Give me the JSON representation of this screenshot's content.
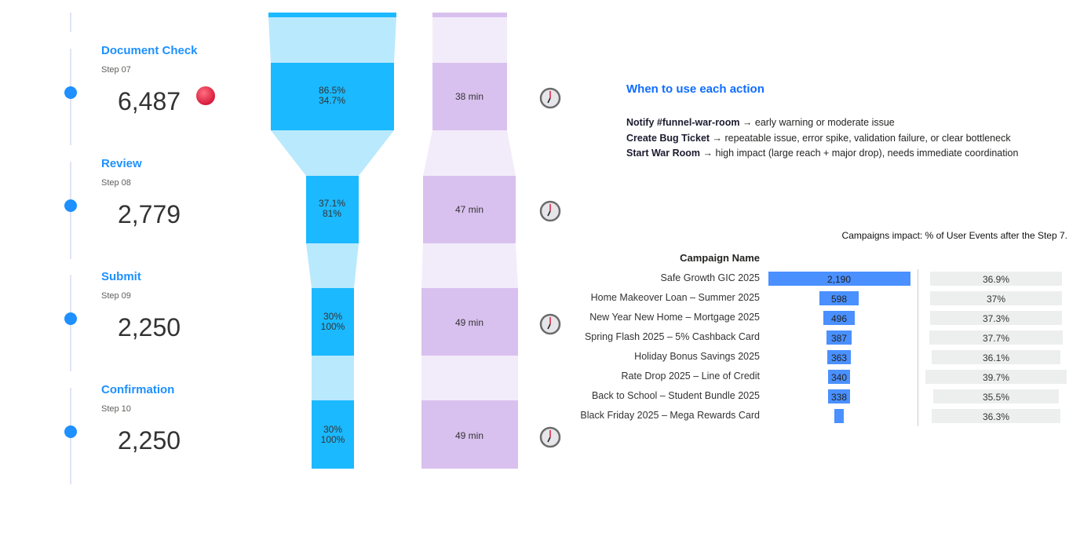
{
  "steps": [
    {
      "title": "Document Check",
      "step": "Step 07",
      "value": "6,487",
      "alert": true,
      "conv": "86.5%",
      "share": "34.7%",
      "time": "38 min"
    },
    {
      "title": "Review",
      "step": "Step 08",
      "value": "2,779",
      "alert": false,
      "conv": "37.1%",
      "share": "81%",
      "time": "47 min"
    },
    {
      "title": "Submit",
      "step": "Step 09",
      "value": "2,250",
      "alert": false,
      "conv": "30%",
      "share": "100%",
      "time": "49 min"
    },
    {
      "title": "Confirmation",
      "step": "Step 10",
      "value": "2,250",
      "alert": false,
      "conv": "30%",
      "share": "100%",
      "time": "49 min"
    }
  ],
  "colors": {
    "accent": "#1e90ff",
    "funnel_dark": "#1bb9ff",
    "funnel_light": "#b9e9fd",
    "time_dark": "#d9c1ef",
    "time_light": "#f2ecfa",
    "bar": "#4a90ff",
    "bar_gray": "#edefee",
    "alert": "#d81b3c"
  },
  "icons": {
    "alert": "red-circle-icon",
    "time": "clock-icon"
  },
  "help": {
    "title": "When to use each action",
    "items": [
      {
        "action": "Notify #funnel-war-room",
        "desc": " → early warning or moderate issue"
      },
      {
        "action": "Create Bug Ticket",
        "desc": " → repeatable issue, error spike, validation failure, or clear bottleneck"
      },
      {
        "action": "Start War Room",
        "desc": " → high impact (large reach + major drop), needs immediate coordination"
      }
    ]
  },
  "campaigns": {
    "caption": "Campaigns impact: % of User Events after the Step 7.",
    "header": "Campaign Name",
    "rows": [
      {
        "name": "Safe Growth GIC 2025",
        "count": 2190,
        "label": "2,190",
        "pct": 36.9,
        "pct_label": "36.9%"
      },
      {
        "name": "Home Makeover Loan – Summer 2025",
        "count": 598,
        "label": "598",
        "pct": 37,
        "pct_label": "37%"
      },
      {
        "name": "New Year New Home – Mortgage 2025",
        "count": 496,
        "label": "496",
        "pct": 37.3,
        "pct_label": "37.3%"
      },
      {
        "name": "Spring Flash 2025 – 5% Cashback Card",
        "count": 387,
        "label": "387",
        "pct": 37.7,
        "pct_label": "37.7%"
      },
      {
        "name": "Holiday Bonus Savings 2025",
        "count": 363,
        "label": "363",
        "pct": 36.1,
        "pct_label": "36.1%"
      },
      {
        "name": "Rate Drop 2025 – Line of Credit",
        "count": 340,
        "label": "340",
        "pct": 39.7,
        "pct_label": "39.7%"
      },
      {
        "name": "Back to School – Student Bundle 2025",
        "count": 338,
        "label": "338",
        "pct": 35.5,
        "pct_label": "35.5%"
      },
      {
        "name": "Black Friday 2025 – Mega Rewards Card",
        "count": 150,
        "label": "",
        "pct": 36.3,
        "pct_label": "36.3%"
      }
    ]
  }
}
